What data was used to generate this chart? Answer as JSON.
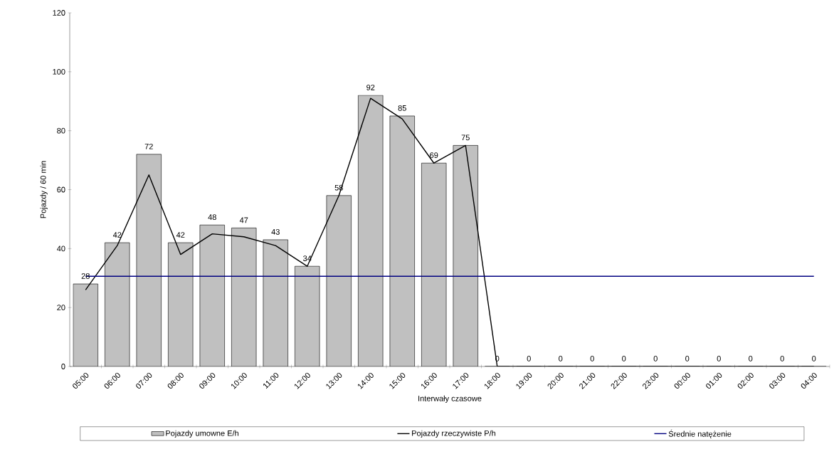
{
  "chart_data": {
    "type": "bar",
    "xlabel": "Interwały czasowe",
    "ylabel": "Pojazdy / 60 min",
    "categories": [
      "05:00",
      "06:00",
      "07:00",
      "08:00",
      "09:00",
      "10:00",
      "11:00",
      "12:00",
      "13:00",
      "14:00",
      "15:00",
      "16:00",
      "17:00",
      "18:00",
      "19:00",
      "20:00",
      "21:00",
      "22:00",
      "23:00",
      "00:00",
      "01:00",
      "02:00",
      "03:00",
      "04:00"
    ],
    "series": [
      {
        "name": "Pojazdy umowne E/h",
        "color": "#c0c0c0",
        "values": [
          28,
          42,
          72,
          42,
          48,
          47,
          43,
          34,
          58,
          92,
          85,
          69,
          75,
          0,
          0,
          0,
          0,
          0,
          0,
          0,
          0,
          0,
          0,
          0
        ],
        "value_labels": [
          "28",
          "42",
          "72",
          "42",
          "48",
          "47",
          "43",
          "34",
          "58",
          "92",
          "85",
          "69",
          "75",
          "0",
          "0",
          "0",
          "0",
          "0",
          "0",
          "0",
          "0",
          "0",
          "0",
          "0"
        ]
      },
      {
        "name": "Pojazdy rzeczywiste P/h",
        "type": "line",
        "color": "#000000",
        "values": [
          26,
          41,
          65,
          38,
          45,
          44,
          41,
          34,
          58,
          91,
          84,
          69,
          75,
          0,
          0,
          0,
          0,
          0,
          0,
          0,
          0,
          0,
          0,
          0
        ]
      },
      {
        "name": "Średnie natężenie",
        "type": "line",
        "color": "#000080",
        "values": [
          30.6,
          30.6,
          30.6,
          30.6,
          30.6,
          30.6,
          30.6,
          30.6,
          30.6,
          30.6,
          30.6,
          30.6,
          30.6,
          30.6,
          30.6,
          30.6,
          30.6,
          30.6,
          30.6,
          30.6,
          30.6,
          30.6,
          30.6,
          30.6
        ]
      }
    ],
    "ylim": [
      0,
      120
    ],
    "yticks": [
      0,
      20,
      40,
      60,
      80,
      100,
      120
    ],
    "legend": "bottom",
    "grid": false,
    "marker": "none",
    "line_style": "solid"
  }
}
